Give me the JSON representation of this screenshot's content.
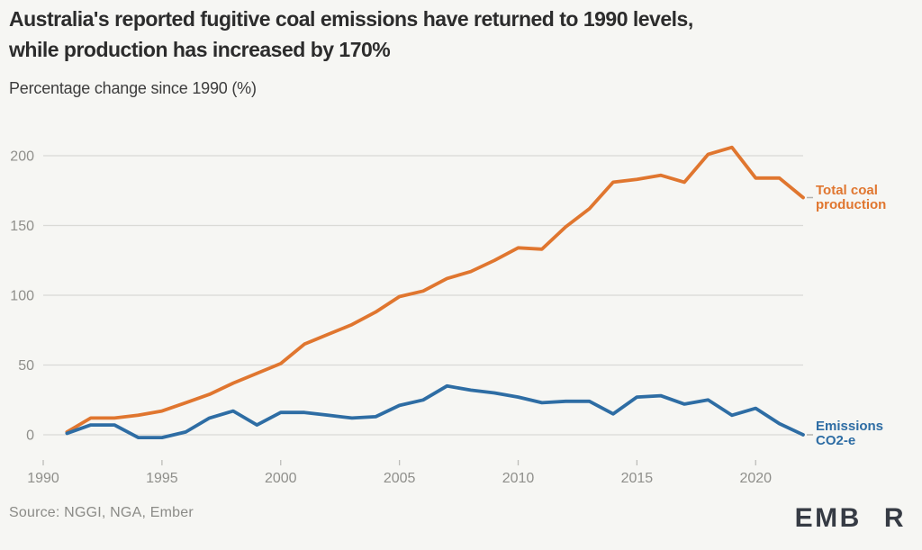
{
  "header": {
    "title": "Australia's reported fugitive coal emissions have returned to 1990 levels,\nwhile production has increased by 170%",
    "subtitle": "Percentage change since 1990 (%)"
  },
  "chart_data": {
    "type": "line",
    "title": "Australia's reported fugitive coal emissions have returned to 1990 levels, while production has increased by 170%",
    "ylabel": "Percentage change since 1990 (%)",
    "xlabel": "",
    "x": [
      1991,
      1992,
      1993,
      1994,
      1995,
      1996,
      1997,
      1998,
      1999,
      2000,
      2001,
      2002,
      2003,
      2004,
      2005,
      2006,
      2007,
      2008,
      2009,
      2010,
      2011,
      2012,
      2013,
      2014,
      2015,
      2016,
      2017,
      2018,
      2019,
      2020,
      2021,
      2022
    ],
    "series": [
      {
        "name": "Total coal production",
        "color": "#e0762f",
        "values": [
          2,
          12,
          12,
          14,
          17,
          23,
          29,
          37,
          44,
          51,
          65,
          72,
          79,
          88,
          99,
          103,
          112,
          117,
          125,
          134,
          133,
          149,
          162,
          181,
          183,
          186,
          181,
          201,
          206,
          184,
          184,
          170
        ]
      },
      {
        "name": "Emissions CO2-e",
        "color": "#2e6da4",
        "values": [
          1,
          7,
          7,
          -2,
          -2,
          2,
          12,
          17,
          7,
          16,
          16,
          14,
          12,
          13,
          21,
          25,
          35,
          32,
          30,
          27,
          23,
          24,
          24,
          15,
          27,
          28,
          22,
          25,
          14,
          19,
          8,
          0
        ]
      }
    ],
    "xticks": [
      1990,
      1995,
      2000,
      2005,
      2010,
      2015,
      2020
    ],
    "yticks": [
      0,
      50,
      100,
      150,
      200
    ],
    "xlim": [
      1990,
      2022.1
    ],
    "ylim": [
      -15,
      218
    ],
    "grid": true,
    "legend_position": "right-inline"
  },
  "series_labels": {
    "production": "Total coal\nproduction",
    "emissions": "Emissions\nCO2-e"
  },
  "footer": {
    "source": "Source: NGGI, NGA, Ember",
    "logo_left": "EMB",
    "logo_right": "R"
  },
  "colors": {
    "production": "#e0762f",
    "emissions": "#2e6da4",
    "grid": "#dadad6",
    "tick": "#bdbdb9",
    "axis_text": "#8f8f8b",
    "end_dash": "#b3b3af",
    "background": "#f6f6f3",
    "logo_dark": "#363b44",
    "logo_green": "#5ecb73"
  }
}
